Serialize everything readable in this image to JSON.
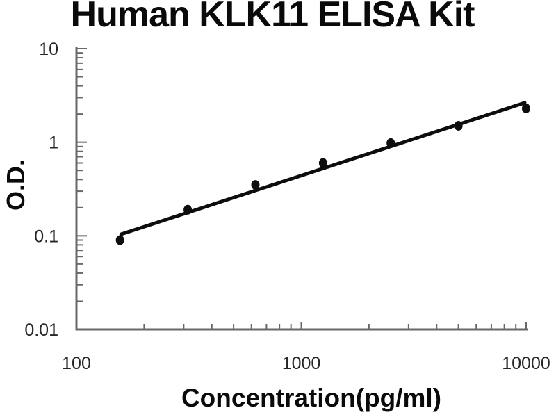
{
  "chart_data": {
    "type": "scatter",
    "title": "Human KLK11 ELISA Kit",
    "xlabel": "Concentration(pg/ml)",
    "ylabel": "O.D.",
    "x_scale": "log",
    "y_scale": "log",
    "xlim": [
      100,
      10000
    ],
    "ylim": [
      0.01,
      10
    ],
    "x_ticks": [
      100,
      1000,
      10000
    ],
    "y_ticks": [
      10,
      1,
      0.1,
      0.01
    ],
    "grid": false,
    "legend": false,
    "series": [
      {
        "name": "standard-points",
        "type": "scatter",
        "points": [
          {
            "x": 156.25,
            "y": 0.09
          },
          {
            "x": 312.5,
            "y": 0.19
          },
          {
            "x": 625,
            "y": 0.35
          },
          {
            "x": 1250,
            "y": 0.6
          },
          {
            "x": 2500,
            "y": 0.98
          },
          {
            "x": 5000,
            "y": 1.5
          },
          {
            "x": 10000,
            "y": 2.3
          }
        ]
      },
      {
        "name": "fit-line",
        "type": "line",
        "points": [
          {
            "x": 158,
            "y": 0.104
          },
          {
            "x": 9860,
            "y": 2.64
          }
        ]
      }
    ],
    "colors": {
      "data": "#0d0d0d",
      "axis": "#686868",
      "tick_label": "#262626",
      "background": "#ffffff"
    }
  }
}
